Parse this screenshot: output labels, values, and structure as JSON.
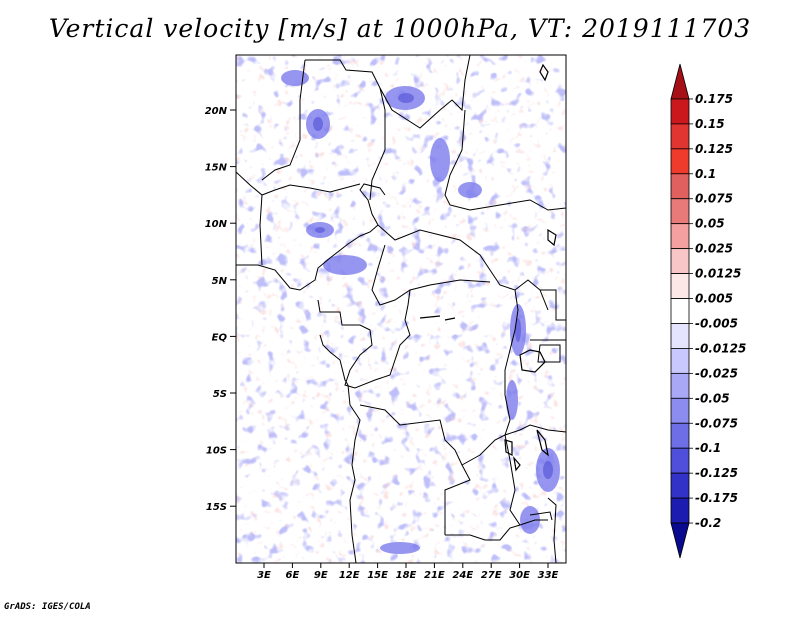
{
  "title": "Vertical velocity [m/s] at 1000hPa, VT: 2019111703",
  "credit": "GrADS: IGES/COLA",
  "map": {
    "lat_labels": [
      "20N",
      "15N",
      "10N",
      "5N",
      "EQ",
      "5S",
      "10S",
      "15S"
    ],
    "lon_labels": [
      "3E",
      "6E",
      "9E",
      "12E",
      "15E",
      "18E",
      "21E",
      "24E",
      "27E",
      "30E",
      "33E"
    ],
    "lat_range": [
      -20,
      25
    ],
    "lon_range": [
      0,
      35
    ]
  },
  "colorbar": {
    "labels": [
      "0.175",
      "0.15",
      "0.125",
      "0.1",
      "0.075",
      "0.05",
      "0.025",
      "0.0125",
      "0.005",
      "-0.005",
      "-0.0125",
      "-0.025",
      "-0.05",
      "-0.075",
      "-0.1",
      "-0.125",
      "-0.175",
      "-0.2"
    ],
    "colors": [
      "#a50f15",
      "#cb181d",
      "#e03530",
      "#ef3b2c",
      "#e06060",
      "#e87a7a",
      "#f4a0a0",
      "#f8c6c6",
      "#fde8e8",
      "#ffffff",
      "#e4e4ff",
      "#c8c8ff",
      "#a8a8f6",
      "#8b8bf0",
      "#6e6ee6",
      "#4f4fdc",
      "#3232c8",
      "#1c1cb0",
      "#0a0a90"
    ]
  }
}
